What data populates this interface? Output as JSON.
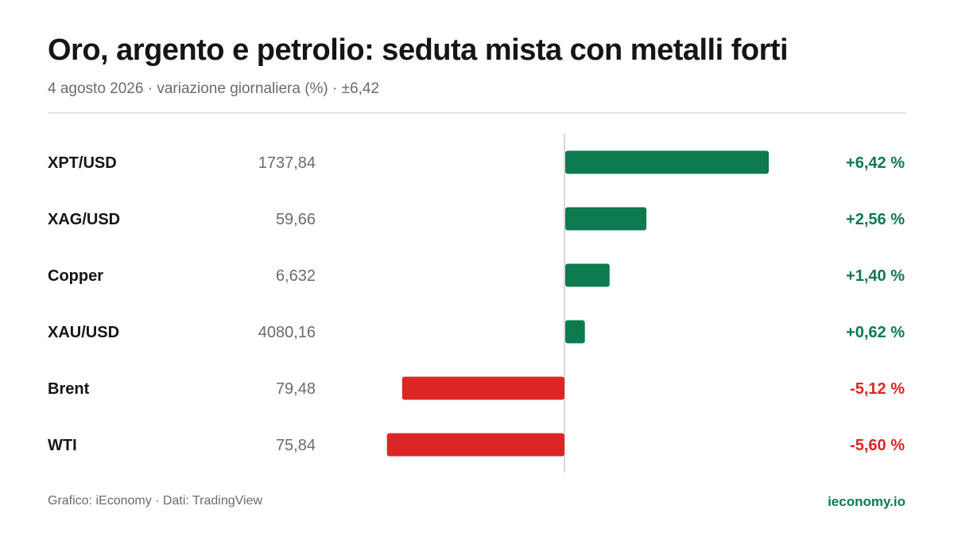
{
  "header": {
    "title": "Oro, argento e petrolio: seduta mista con metalli forti",
    "subtitle": "4 agosto 2026 · variazione giornaliera (%) · ±6,42"
  },
  "colors": {
    "positive": "#0d7a4f",
    "negative": "#dc2626",
    "axis": "#d9d9d9"
  },
  "chart_data": {
    "type": "bar",
    "orientation": "horizontal",
    "categories": [
      "XPT/USD",
      "XAG/USD",
      "Copper",
      "XAU/USD",
      "Brent",
      "WTI"
    ],
    "prices": [
      "1737,84",
      "59,66",
      "6,632",
      "4080,16",
      "79,48",
      "75,84"
    ],
    "values": [
      6.42,
      2.56,
      1.4,
      0.62,
      -5.12,
      -5.6
    ],
    "value_labels": [
      "+6,42 %",
      "+2,56 %",
      "+1,40 %",
      "+0,62 %",
      "-5,12 %",
      "-5,60 %"
    ],
    "xlim": [
      -6.42,
      6.42
    ],
    "grid": false
  },
  "footer": {
    "source": "Grafico: iEconomy · Dati: TradingView",
    "brand": "ieconomy.io"
  }
}
